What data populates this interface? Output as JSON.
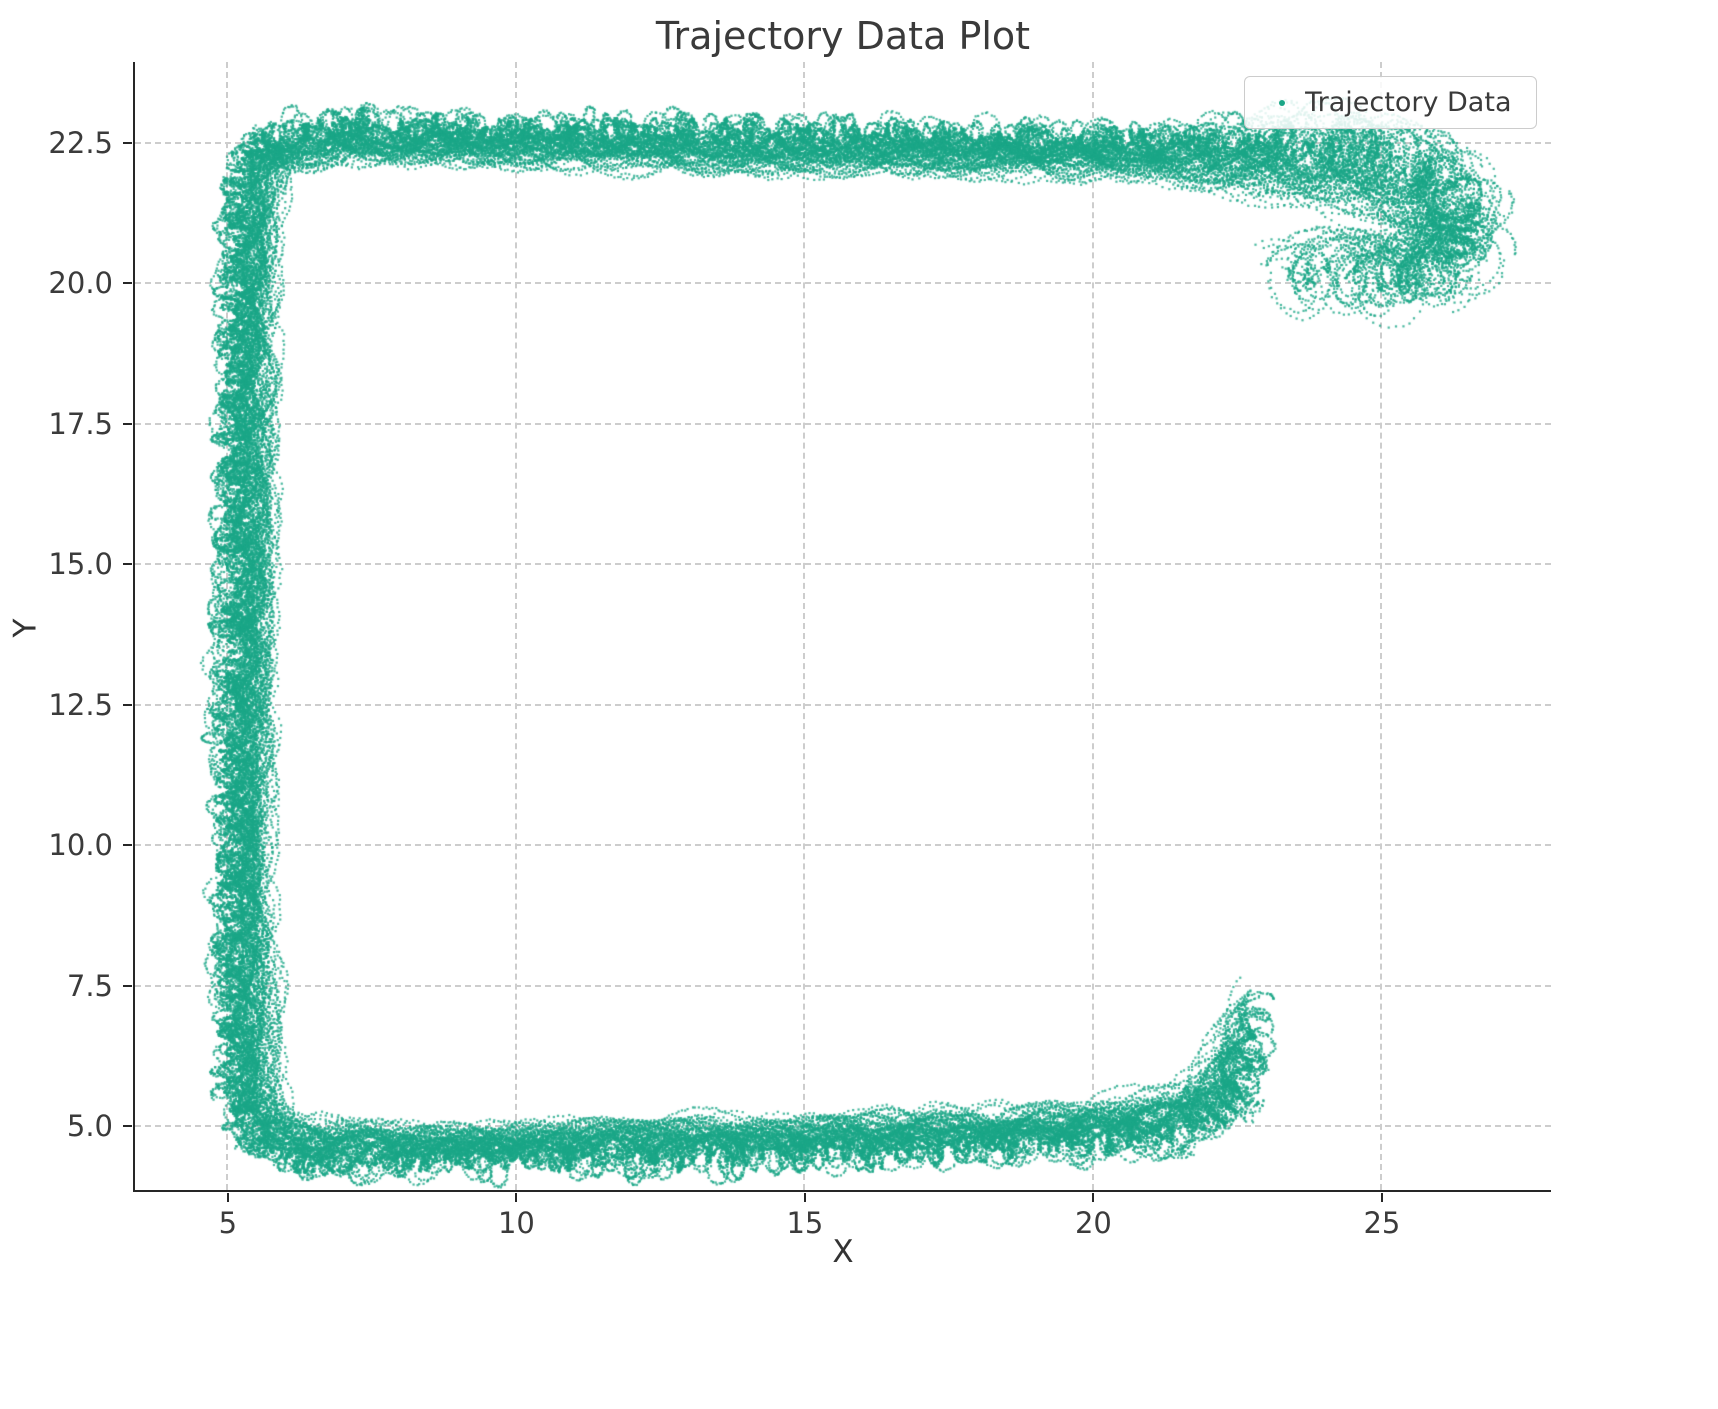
{
  "chart_data": {
    "type": "scatter",
    "title": "Trajectory Data Plot",
    "xlabel": "X",
    "ylabel": "Y",
    "xlim": [
      3.39,
      27.93
    ],
    "ylim": [
      3.87,
      23.94
    ],
    "x_ticks": [
      5,
      10,
      15,
      20,
      25
    ],
    "x_tick_labels": [
      "5",
      "10",
      "15",
      "20",
      "25"
    ],
    "y_ticks": [
      5.0,
      7.5,
      10.0,
      12.5,
      15.0,
      17.5,
      20.0,
      22.5
    ],
    "y_tick_labels": [
      "5.0",
      "7.5",
      "10.0",
      "12.5",
      "15.0",
      "17.5",
      "20.0",
      "22.5"
    ],
    "grid": true,
    "grid_style": "dashed",
    "legend_position": "upper right",
    "legend": [
      {
        "label": "Trajectory Data",
        "color": "#1aa687",
        "marker": "point"
      }
    ],
    "series": [
      {
        "name": "Trajectory Data",
        "color": "#1aa687",
        "alpha": 0.8,
        "marker_px": 2.2,
        "trajectory_model": {
          "seed": 9,
          "n_trajectories": 40,
          "step": 0.025,
          "point_jitter": 0.04,
          "loops_per_unit": [
            0.5,
            1.1
          ],
          "amplitude_scale": [
            0.55,
            1.05
          ],
          "backbone": [
            [
              22.75,
              7.4,
              0.4
            ],
            [
              22.55,
              6.4,
              0.55
            ],
            [
              22.25,
              5.5,
              0.6
            ],
            [
              21.5,
              5.1,
              0.55
            ],
            [
              20.0,
              4.95,
              0.45
            ],
            [
              17.5,
              4.8,
              0.45
            ],
            [
              14.5,
              4.7,
              0.45
            ],
            [
              11.5,
              4.65,
              0.45
            ],
            [
              8.5,
              4.6,
              0.45
            ],
            [
              6.3,
              4.6,
              0.46
            ],
            [
              5.55,
              4.85,
              0.5
            ],
            [
              5.3,
              5.8,
              0.5
            ],
            [
              5.25,
              8.5,
              0.5
            ],
            [
              5.25,
              11.5,
              0.5
            ],
            [
              5.3,
              14.5,
              0.5
            ],
            [
              5.3,
              17.5,
              0.5
            ],
            [
              5.35,
              20.0,
              0.5
            ],
            [
              5.4,
              21.9,
              0.46
            ],
            [
              5.75,
              22.45,
              0.42
            ],
            [
              7.0,
              22.6,
              0.44
            ],
            [
              9.5,
              22.55,
              0.45
            ],
            [
              12.5,
              22.5,
              0.45
            ],
            [
              15.5,
              22.45,
              0.43
            ],
            [
              18.5,
              22.4,
              0.45
            ],
            [
              21.0,
              22.35,
              0.5
            ],
            [
              23.0,
              22.3,
              0.7
            ],
            [
              24.8,
              22.15,
              0.85
            ],
            [
              25.9,
              21.7,
              0.85
            ],
            [
              26.4,
              21.0,
              0.8
            ],
            [
              26.0,
              20.4,
              0.8
            ],
            [
              24.9,
              20.25,
              0.85
            ],
            [
              23.7,
              20.35,
              0.85
            ],
            [
              22.9,
              20.1,
              0.75
            ]
          ]
        }
      }
    ]
  }
}
